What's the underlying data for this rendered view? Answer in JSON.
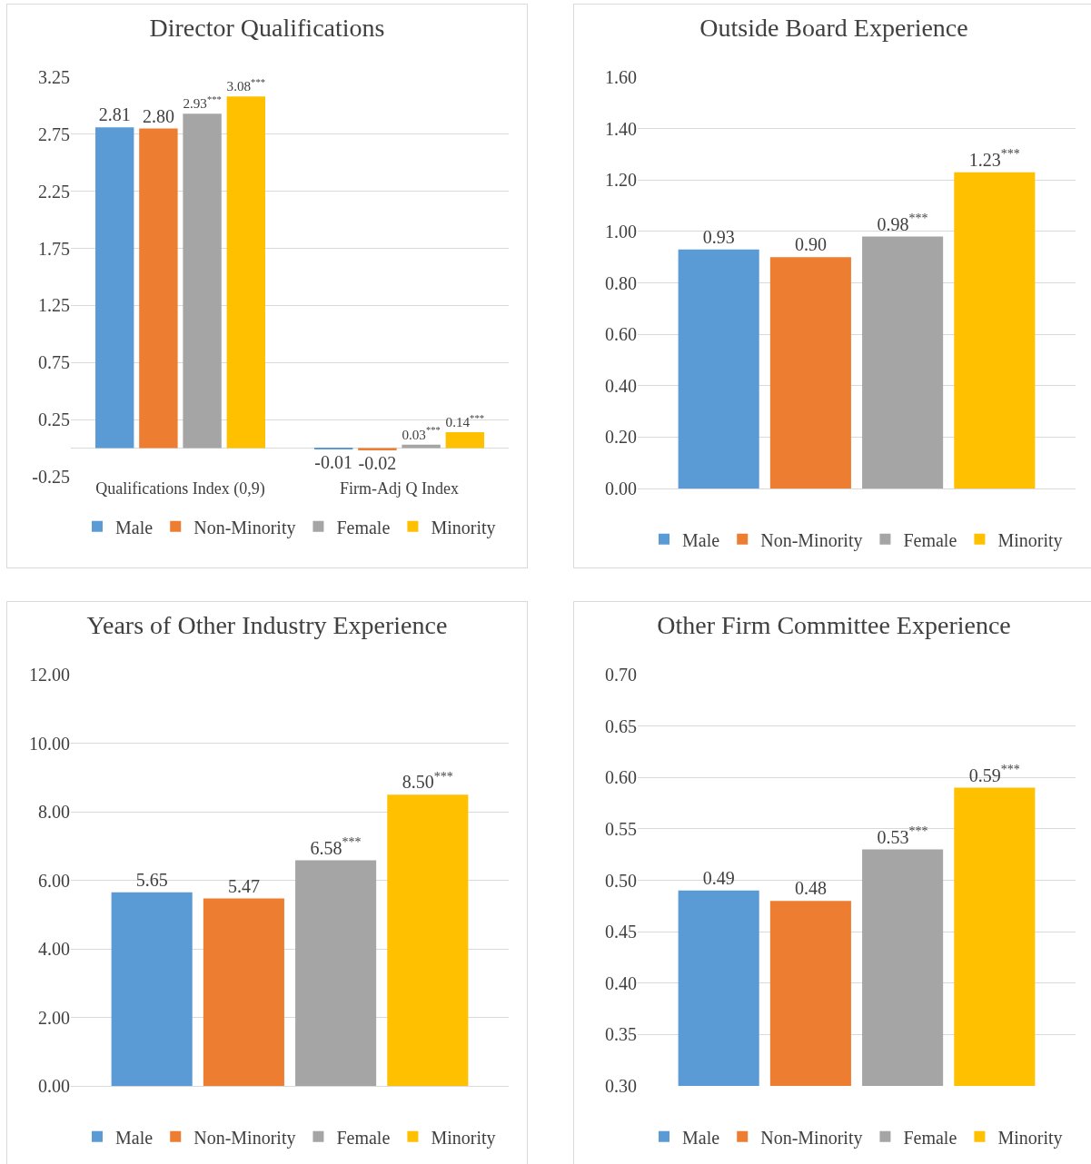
{
  "chart_data": [
    {
      "type": "bar",
      "title": "Director Qualifications",
      "categories": [
        "Qualifications Index (0,9)",
        "Firm-Adj Q Index"
      ],
      "series": [
        {
          "name": "Male",
          "color": "#5b9bd5",
          "values": [
            2.81,
            -0.01
          ],
          "value_labels": [
            "2.81",
            "-0.01"
          ]
        },
        {
          "name": "Non-Minority",
          "color": "#ed7d31",
          "values": [
            2.8,
            -0.02
          ],
          "value_labels": [
            "2.80",
            "-0.02"
          ]
        },
        {
          "name": "Female",
          "color": "#a5a5a5",
          "values": [
            2.93,
            0.03
          ],
          "value_labels": [
            "2.93$^{***}$",
            "0.03$^{***}$"
          ]
        },
        {
          "name": "Minority",
          "color": "#ffc000",
          "values": [
            3.08,
            0.14
          ],
          "value_labels": [
            "3.08$^{***}$",
            "0.14$^{***}$"
          ]
        }
      ],
      "ylim": [
        -0.25,
        3.25
      ],
      "yticks": [
        -0.25,
        0.25,
        0.75,
        1.25,
        1.75,
        2.25,
        2.75,
        3.25
      ],
      "grid": "y",
      "legend": "bottom"
    },
    {
      "type": "bar",
      "title": "Outside Board Experience",
      "categories": [
        null
      ],
      "series": [
        {
          "name": "Male",
          "color": "#5b9bd5",
          "values": [
            0.93
          ],
          "value_labels": [
            "0.93"
          ]
        },
        {
          "name": "Non-Minority",
          "color": "#ed7d31",
          "values": [
            0.9
          ],
          "value_labels": [
            "0.90"
          ]
        },
        {
          "name": "Female",
          "color": "#a5a5a5",
          "values": [
            0.98
          ],
          "value_labels": [
            "0.98$^{***}$"
          ]
        },
        {
          "name": "Minority",
          "color": "#ffc000",
          "values": [
            1.23
          ],
          "value_labels": [
            "1.23$^{***}$"
          ]
        }
      ],
      "ylim": [
        0,
        1.6
      ],
      "yticks": [
        {
          "value": 0,
          "label": "0.00"
        },
        {
          "value": 0.2,
          "label": "0.20"
        },
        {
          "value": 0.4,
          "label": "0.40"
        },
        {
          "value": 0.6,
          "label": "0.60"
        },
        {
          "value": 0.8,
          "label": "0.80"
        },
        {
          "value": 1,
          "label": "1.00"
        },
        {
          "value": 1.2,
          "label": "1.20"
        },
        {
          "value": 1.4,
          "label": "1.40"
        },
        {
          "value": 1.6,
          "label": "1.60"
        }
      ],
      "grid": "y",
      "legend": "bottom"
    },
    {
      "type": "bar",
      "title": "Years of Other Industry Experience",
      "categories": [
        null
      ],
      "series": [
        {
          "name": "Male",
          "color": "#5b9bd5",
          "values": [
            5.65
          ],
          "value_labels": [
            "5.65"
          ]
        },
        {
          "name": "Non-Minority",
          "color": "#ed7d31",
          "values": [
            5.47
          ],
          "value_labels": [
            "5.47"
          ]
        },
        {
          "name": "Female",
          "color": "#a5a5a5",
          "values": [
            6.58
          ],
          "value_labels": [
            "6.58$^{***}$"
          ]
        },
        {
          "name": "Minority",
          "color": "#ffc000",
          "values": [
            8.5
          ],
          "value_labels": [
            "8.50$^{***}$"
          ]
        }
      ],
      "ylim": [
        0,
        12
      ],
      "yticks": [
        {
          "value": 0,
          "label": "0.00"
        },
        {
          "value": 2,
          "label": "2.00"
        },
        {
          "value": 4,
          "label": "4.00"
        },
        {
          "value": 6,
          "label": "6.00"
        },
        {
          "value": 8,
          "label": "8.00"
        },
        {
          "value": 10,
          "label": "10.00"
        },
        {
          "value": 12,
          "label": "12.00"
        }
      ],
      "grid": "y",
      "legend": "bottom"
    },
    {
      "type": "bar",
      "title": "Other Firm Committee Experience",
      "categories": [
        null
      ],
      "series": [
        {
          "name": "Male",
          "color": "#5b9bd5",
          "values": [
            0.49
          ],
          "value_labels": [
            "0.49"
          ]
        },
        {
          "name": "Non-Minority",
          "color": "#ed7d31",
          "values": [
            0.48
          ],
          "value_labels": [
            "0.48"
          ]
        },
        {
          "name": "Female",
          "color": "#a5a5a5",
          "values": [
            0.53
          ],
          "value_labels": [
            "0.53$^{***}$"
          ]
        },
        {
          "name": "Minority",
          "color": "#ffc000",
          "values": [
            0.59
          ],
          "value_labels": [
            "0.59$^{***}$"
          ]
        }
      ],
      "ylim": [
        0.3,
        0.7
      ],
      "yticks": [
        {
          "value": 0.3,
          "label": "0.30"
        },
        {
          "value": 0.35,
          "label": "0.35"
        },
        {
          "value": 0.4,
          "label": "0.40"
        },
        {
          "value": 0.45,
          "label": "0.45"
        },
        {
          "value": 0.5,
          "label": "0.50"
        },
        {
          "value": 0.55,
          "label": "0.55"
        },
        {
          "value": 0.6,
          "label": "0.60"
        },
        {
          "value": 0.65,
          "label": "0.65"
        },
        {
          "value": 0.7,
          "label": "0.70"
        }
      ],
      "grid": "y",
      "legend": "bottom"
    }
  ]
}
